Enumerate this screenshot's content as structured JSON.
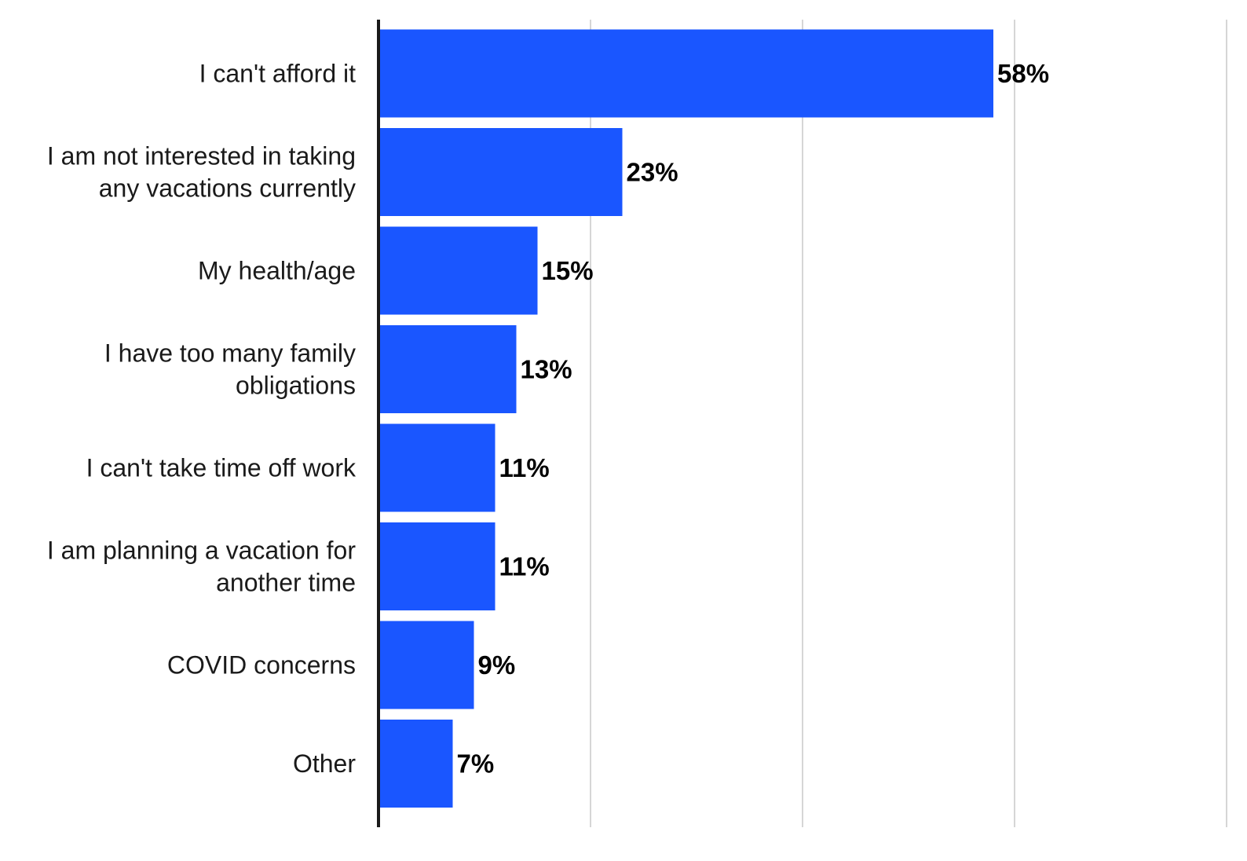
{
  "chart_data": {
    "type": "bar",
    "orientation": "horizontal",
    "categories": [
      [
        "I can't afford it"
      ],
      [
        "I am not interested in taking",
        "any vacations currently"
      ],
      [
        "My health/age"
      ],
      [
        "I have too many family",
        "obligations"
      ],
      [
        "I can't take time off work"
      ],
      [
        "I am planning a vacation for",
        "another time"
      ],
      [
        "COVID concerns"
      ],
      [
        "Other"
      ]
    ],
    "values": [
      58,
      23,
      15,
      13,
      11,
      11,
      9,
      7
    ],
    "value_labels": [
      "58%",
      "23%",
      "15%",
      "13%",
      "11%",
      "11%",
      "9%",
      "7%"
    ],
    "xlim": [
      0,
      80
    ],
    "grid_x": [
      20,
      40,
      60,
      80
    ],
    "grid": true,
    "title": "",
    "xlabel": "",
    "ylabel": "",
    "colors": {
      "bar": "#1a56ff",
      "axis": "#1a1a1a",
      "grid": "#d6d6d6"
    }
  }
}
